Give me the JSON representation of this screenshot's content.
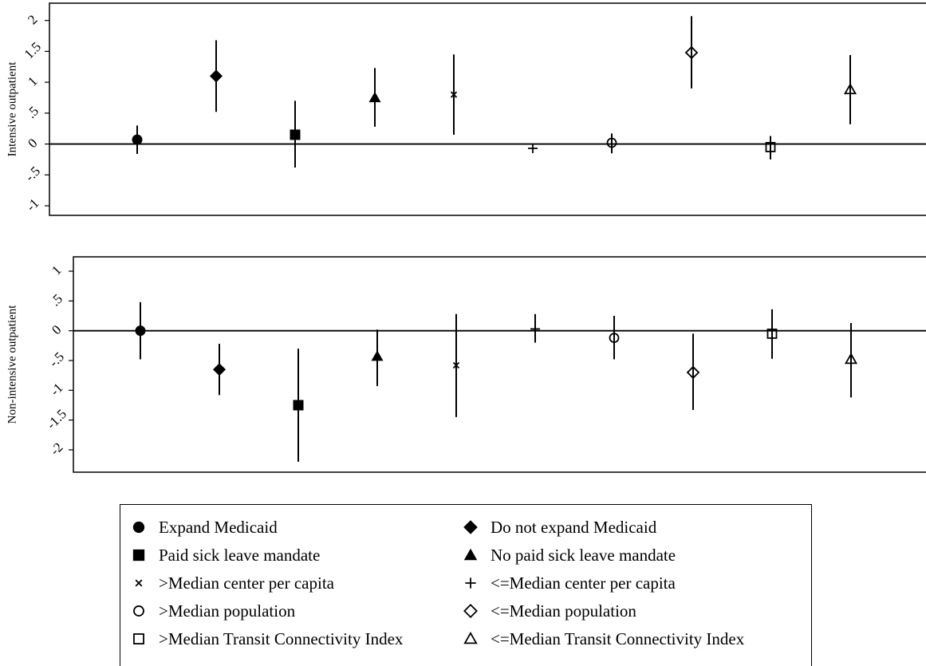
{
  "chart_data": [
    {
      "type": "scatter",
      "panel": "top",
      "ylabel": "Intensive outpatient",
      "xlabel": "",
      "ylim": [
        -1.1,
        2.2
      ],
      "yticks": [
        2,
        1.5,
        1,
        0.5,
        0,
        -0.5,
        -1
      ],
      "ytick_labels": [
        "2",
        "1.5",
        "1",
        ".5",
        "0",
        "-.5",
        "-1"
      ],
      "zero_line": true,
      "series": [
        {
          "name": "Expand Medicaid",
          "marker": "circle-filled",
          "value": 0.07,
          "ci": [
            -0.16,
            0.3
          ]
        },
        {
          "name": "Do not expand Medicaid",
          "marker": "diamond-filled",
          "value": 1.1,
          "ci": [
            0.52,
            1.68
          ]
        },
        {
          "name": "Paid sick leave mandate",
          "marker": "square-filled",
          "value": 0.15,
          "ci": [
            -0.38,
            0.7
          ]
        },
        {
          "name": "No paid sick leave mandate",
          "marker": "triangle-filled",
          "value": 0.75,
          "ci": [
            0.28,
            1.23
          ]
        },
        {
          "name": ">Median center per capita",
          "marker": "x",
          "value": 0.8,
          "ci": [
            0.15,
            1.45
          ]
        },
        {
          "name": "<=Median center per capita",
          "marker": "plus",
          "value": -0.07,
          "ci": [
            -0.07,
            -0.07
          ]
        },
        {
          "name": ">Median population",
          "marker": "circle-hollow",
          "value": 0.02,
          "ci": [
            -0.15,
            0.17
          ]
        },
        {
          "name": "<=Median population",
          "marker": "diamond-hollow",
          "value": 1.48,
          "ci": [
            0.9,
            2.07
          ]
        },
        {
          "name": ">Median Transit Connectivity Index",
          "marker": "square-hollow",
          "value": -0.05,
          "ci": [
            -0.25,
            0.13
          ]
        },
        {
          "name": "<=Median Transit Connectivity Index",
          "marker": "triangle-hollow",
          "value": 0.88,
          "ci": [
            0.32,
            1.44
          ]
        }
      ]
    },
    {
      "type": "scatter",
      "panel": "bottom",
      "ylabel": "Non-intensive outpatient",
      "xlabel": "",
      "ylim": [
        -2.45,
        1.2
      ],
      "yticks": [
        1,
        0.5,
        0,
        -0.5,
        -1,
        -1.5,
        -2
      ],
      "ytick_labels": [
        "1",
        ".5",
        "0",
        "-.5",
        "-1",
        "-1.5",
        "-2"
      ],
      "zero_line": true,
      "series": [
        {
          "name": "Expand Medicaid",
          "marker": "circle-filled",
          "value": 0.0,
          "ci": [
            -0.48,
            0.48
          ]
        },
        {
          "name": "Do not expand Medicaid",
          "marker": "diamond-filled",
          "value": -0.65,
          "ci": [
            -1.08,
            -0.22
          ]
        },
        {
          "name": "Paid sick leave mandate",
          "marker": "square-filled",
          "value": -1.25,
          "ci": [
            -2.2,
            -0.3
          ]
        },
        {
          "name": "No paid sick leave mandate",
          "marker": "triangle-filled",
          "value": -0.43,
          "ci": [
            -0.93,
            0.02
          ]
        },
        {
          "name": ">Median center per capita",
          "marker": "x",
          "value": -0.58,
          "ci": [
            -1.45,
            0.28
          ]
        },
        {
          "name": "<=Median center per capita",
          "marker": "plus",
          "value": 0.03,
          "ci": [
            -0.2,
            0.28
          ]
        },
        {
          "name": ">Median population",
          "marker": "circle-hollow",
          "value": -0.12,
          "ci": [
            -0.48,
            0.25
          ]
        },
        {
          "name": "<=Median population",
          "marker": "diamond-hollow",
          "value": -0.7,
          "ci": [
            -1.33,
            -0.05
          ]
        },
        {
          "name": ">Median Transit Connectivity Index",
          "marker": "square-hollow",
          "value": -0.05,
          "ci": [
            -0.47,
            0.36
          ]
        },
        {
          "name": "<=Median Transit Connectivity Index",
          "marker": "triangle-hollow",
          "value": -0.48,
          "ci": [
            -1.12,
            0.13
          ]
        }
      ]
    }
  ],
  "legend": {
    "placement": "bottom-center",
    "items": [
      {
        "marker": "circle-filled",
        "label": "Expand Medicaid"
      },
      {
        "marker": "diamond-filled",
        "label": "Do not expand Medicaid"
      },
      {
        "marker": "square-filled",
        "label": "Paid sick leave mandate"
      },
      {
        "marker": "triangle-filled",
        "label": "No paid sick leave mandate"
      },
      {
        "marker": "x",
        "label": ">Median center per capita"
      },
      {
        "marker": "plus",
        "label": "<=Median center per capita"
      },
      {
        "marker": "circle-hollow",
        "label": ">Median population"
      },
      {
        "marker": "diamond-hollow",
        "label": "<=Median population"
      },
      {
        "marker": "square-hollow",
        "label": ">Median Transit Connectivity Index"
      },
      {
        "marker": "triangle-hollow",
        "label": "<=Median Transit Connectivity Index"
      }
    ]
  },
  "colors": {
    "ink": "#000000",
    "background": "#ffffff"
  }
}
